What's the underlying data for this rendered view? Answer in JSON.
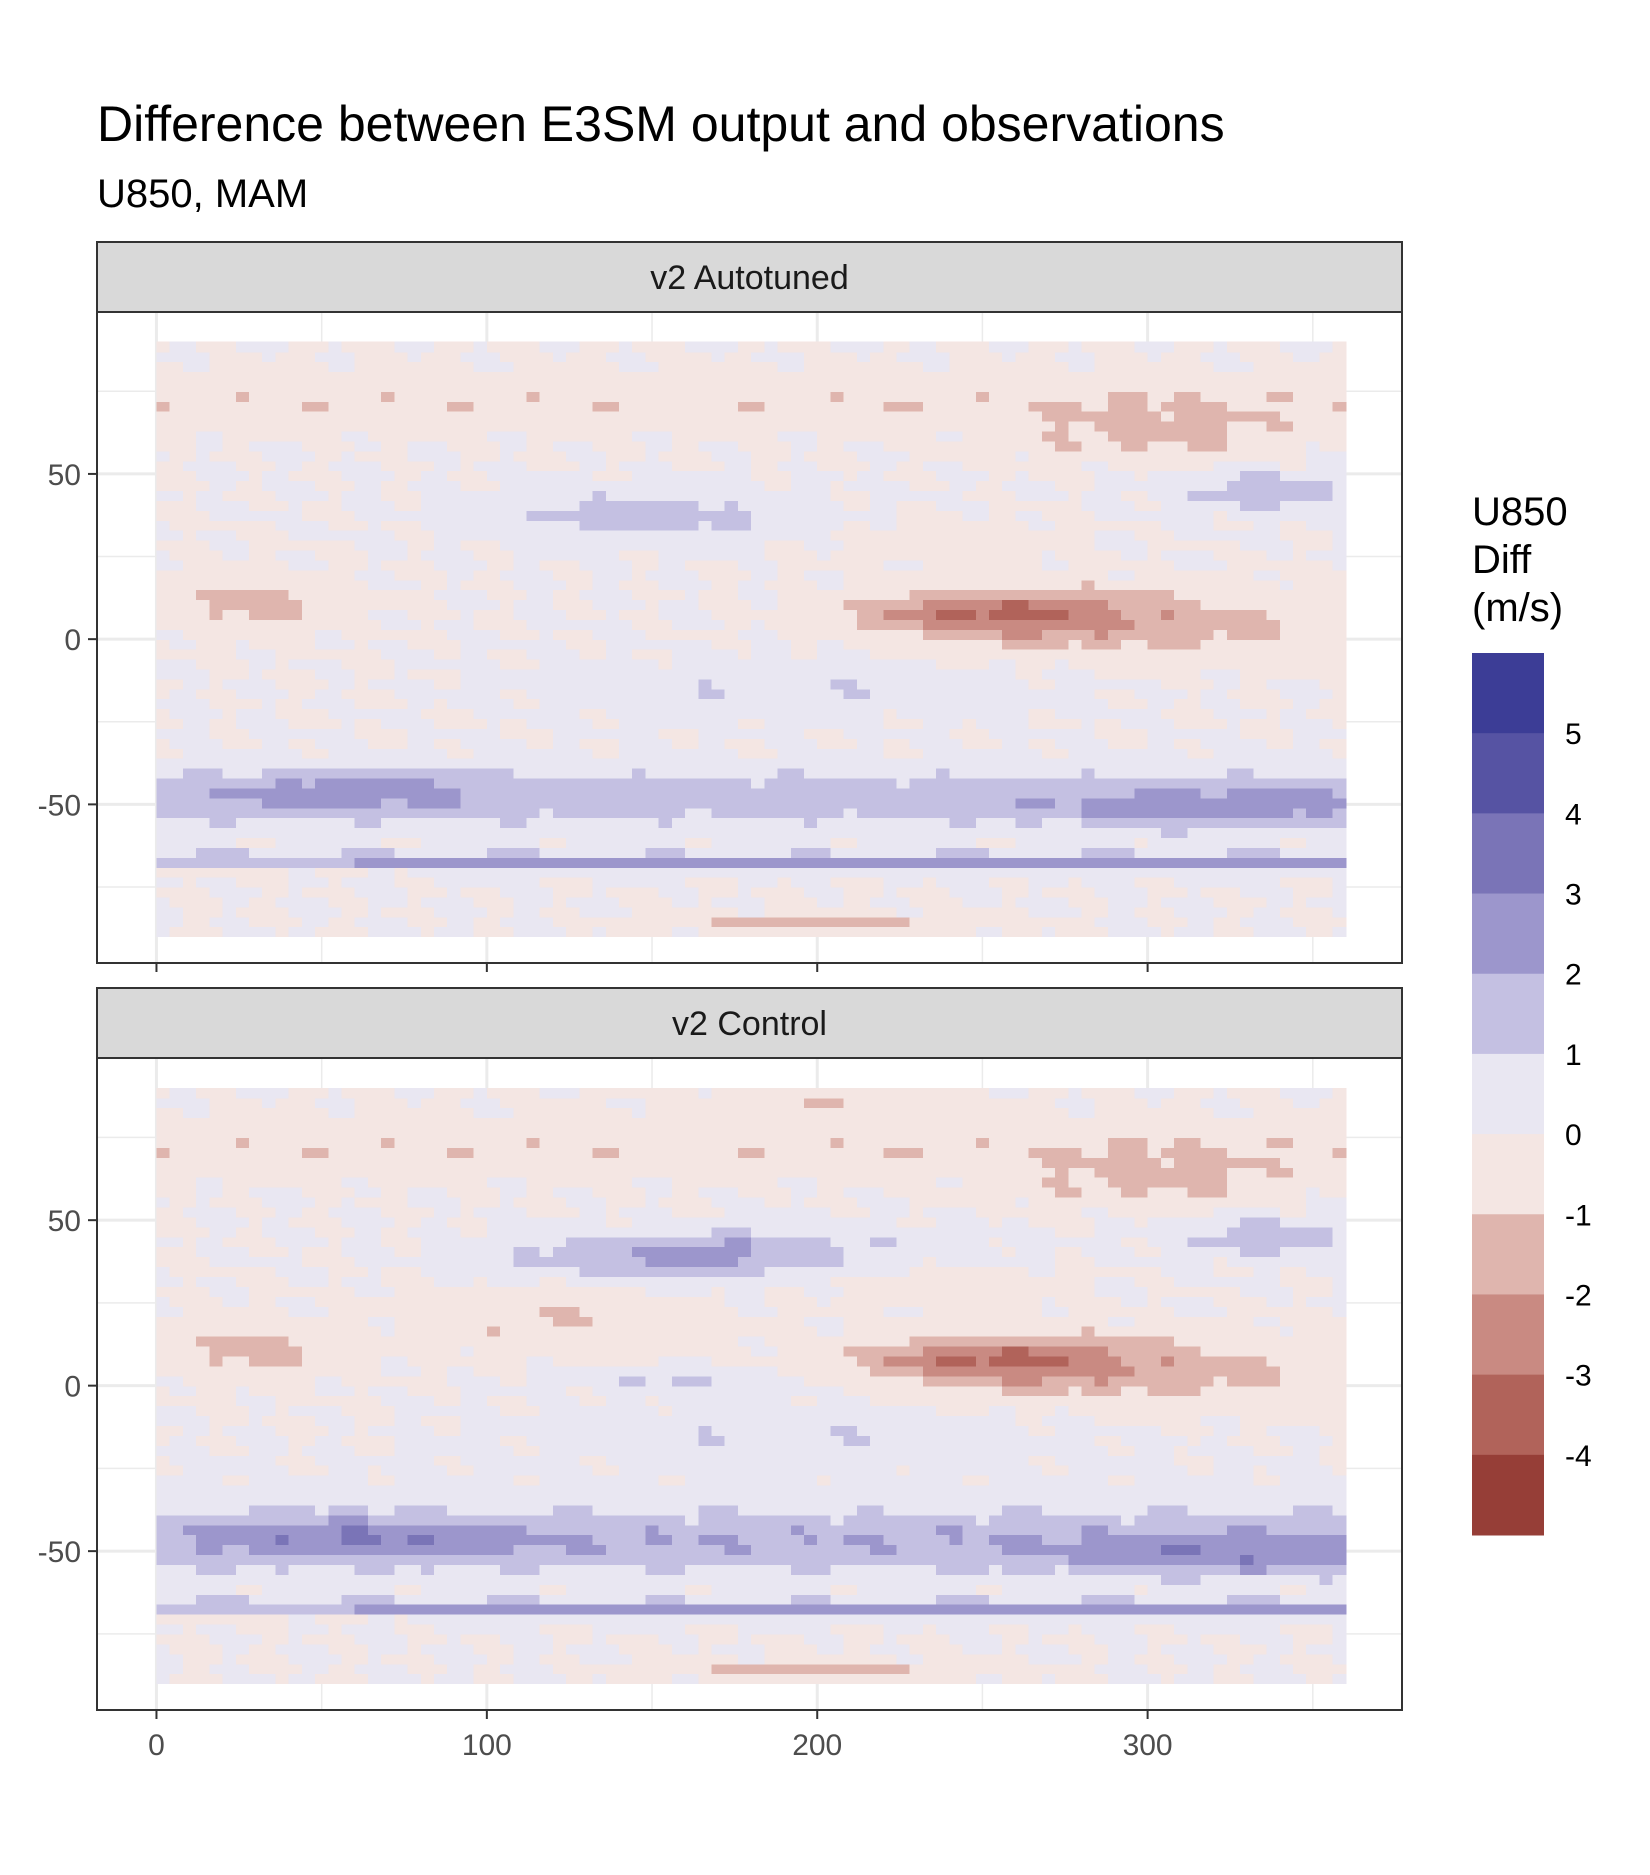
{
  "chart_data": {
    "type": "heatmap",
    "title": "Difference between E3SM output and observations",
    "subtitle": "U850, MAM",
    "xlabel": "",
    "ylabel": "",
    "xlim": [
      -18,
      377
    ],
    "x_ticks": [
      0,
      100,
      200,
      300
    ],
    "x_tick_labels": [
      "0",
      "100",
      "200",
      "300"
    ],
    "ylim": [
      -98,
      99
    ],
    "y_ticks": [
      -50,
      0,
      50
    ],
    "y_tick_labels": [
      "-50",
      "0",
      "50"
    ],
    "grid": true,
    "legend_position": "right",
    "legend": {
      "title": "U850 Diff (m/s)",
      "title_lines": [
        "U850",
        "Diff",
        "(m/s)"
      ],
      "breaks": [
        5,
        4,
        3,
        2,
        1,
        0,
        -1,
        -2,
        -3,
        -4
      ],
      "break_labels": [
        "5",
        "4",
        "3",
        "2",
        "1",
        "0",
        "-1",
        "-2",
        "-3",
        "-4"
      ],
      "bins": [
        {
          "range": [
            5,
            6
          ],
          "color": "#3c3d96"
        },
        {
          "range": [
            4,
            5
          ],
          "color": "#5653a3"
        },
        {
          "range": [
            3,
            4
          ],
          "color": "#7a74b7"
        },
        {
          "range": [
            2,
            3
          ],
          "color": "#9c96cc"
        },
        {
          "range": [
            1,
            2
          ],
          "color": "#c4c0e2"
        },
        {
          "range": [
            0,
            1
          ],
          "color": "#e9e7f2"
        },
        {
          "range": [
            -1,
            0
          ],
          "color": "#f4e6e3"
        },
        {
          "range": [
            -2,
            -1
          ],
          "color": "#dfb5ae"
        },
        {
          "range": [
            -3,
            -2
          ],
          "color": "#c98a82"
        },
        {
          "range": [
            -4,
            -3
          ],
          "color": "#b1635a"
        },
        {
          "range": [
            -5,
            -4
          ],
          "color": "#963e37"
        }
      ]
    },
    "panels": [
      {
        "label": "v2 Autotuned",
        "variant": 0
      },
      {
        "label": "v2 Control",
        "variant": 1
      }
    ],
    "grid_lon_range": [
      0,
      360
    ],
    "grid_lat_range": [
      -90,
      90
    ]
  },
  "colors": {
    "strip_background": "#d9d9d9",
    "panel_border": "#333333",
    "gridline": "#ebebeb",
    "axis_text": "#4d4d4d"
  }
}
